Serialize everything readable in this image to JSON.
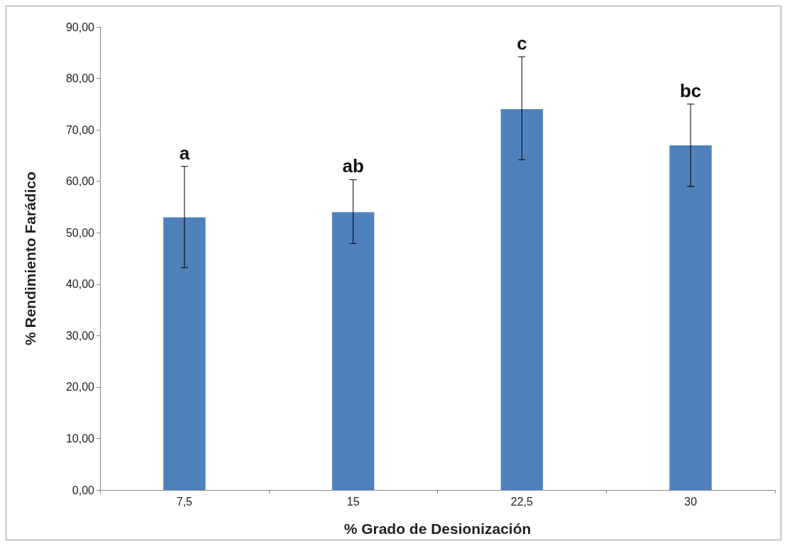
{
  "chart_data": {
    "type": "bar",
    "xlabel": "% Grado de Desionización",
    "ylabel": "% Rendimiento Farádico",
    "categories": [
      "7,5",
      "15",
      "22,5",
      "30"
    ],
    "values": [
      53.0,
      54.0,
      74.0,
      67.0
    ],
    "errors": [
      [
        43.2,
        62.9
      ],
      [
        47.9,
        60.3
      ],
      [
        64.2,
        84.2
      ],
      [
        59.0,
        75.0
      ]
    ],
    "color": "#4f81bd",
    "ylim": [
      0,
      90
    ],
    "yticks": [
      {
        "value": 0,
        "label": "0,00"
      },
      {
        "value": 10,
        "label": "10,00"
      },
      {
        "value": 20,
        "label": "20,00"
      },
      {
        "value": 30,
        "label": "30,00"
      },
      {
        "value": 40,
        "label": "40,00"
      },
      {
        "value": 50,
        "label": "50,00"
      },
      {
        "value": 60,
        "label": "60,00"
      },
      {
        "value": 70,
        "label": "70,00"
      },
      {
        "value": 80,
        "label": "80,00"
      },
      {
        "value": 90,
        "label": "90,00"
      }
    ],
    "annotations": [
      {
        "text": "a",
        "x": "7,5",
        "y": 62.9
      },
      {
        "text": "ab",
        "x": "15",
        "y": 60.3
      },
      {
        "text": "c",
        "x": "22,5",
        "y": 84.2
      },
      {
        "text": "bc",
        "x": "30",
        "y": 75.0
      }
    ],
    "grid": false
  }
}
